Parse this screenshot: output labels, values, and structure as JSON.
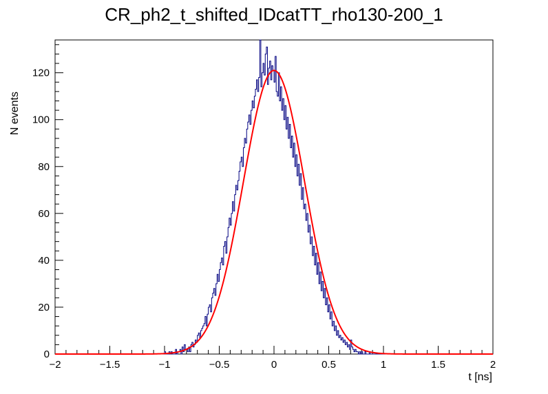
{
  "chart_data": {
    "type": "line",
    "title": "CR_ph2_t_shifted_IDcatTT_rho130-200_1",
    "xlabel": "t [ns]",
    "ylabel": "N events",
    "xlim": [
      -2,
      2
    ],
    "ylim": [
      0,
      134
    ],
    "x_ticks": [
      -2,
      -1.5,
      -1,
      -0.5,
      0,
      0.5,
      1,
      1.5,
      2
    ],
    "x_tick_labels": [
      "−2",
      "−1.5",
      "−1",
      "−0.5",
      "0",
      "0.5",
      "1",
      "1.5",
      "2"
    ],
    "y_ticks": [
      0,
      20,
      40,
      60,
      80,
      100,
      120
    ],
    "y_tick_labels": [
      "0",
      "20",
      "40",
      "60",
      "80",
      "100",
      "120"
    ],
    "grid": false,
    "colors": {
      "histogram": "#000080",
      "fit": "#ff0000",
      "frame": "#000000"
    },
    "series": [
      {
        "kind": "histogram",
        "bin_width": 0.01,
        "x_start": -1.0,
        "x_end": 0.95,
        "counts": [
          1,
          0,
          0,
          0,
          1,
          0,
          1,
          0,
          0,
          0,
          2,
          0,
          1,
          1,
          2,
          0,
          3,
          1,
          4,
          2,
          2,
          1,
          3,
          1,
          4,
          5,
          3,
          4,
          6,
          5,
          8,
          9,
          7,
          10,
          11,
          12,
          13,
          16,
          12,
          17,
          20,
          21,
          18,
          24,
          26,
          28,
          25,
          30,
          34,
          31,
          36,
          39,
          41,
          38,
          46,
          48,
          43,
          50,
          54,
          58,
          55,
          60,
          65,
          61,
          68,
          72,
          70,
          74,
          78,
          82,
          84,
          80,
          88,
          92,
          90,
          96,
          99,
          102,
          98,
          104,
          108,
          105,
          110,
          113,
          117,
          112,
          118,
          134,
          114,
          120,
          124,
          119,
          128,
          131,
          115,
          122,
          125,
          117,
          123,
          121,
          116,
          127,
          112,
          110,
          120,
          108,
          114,
          104,
          109,
          100,
          106,
          96,
          101,
          92,
          98,
          88,
          93,
          84,
          90,
          80,
          85,
          76,
          81,
          72,
          77,
          66,
          71,
          62,
          64,
          57,
          60,
          52,
          55,
          47,
          50,
          42,
          46,
          38,
          43,
          34,
          39,
          30,
          35,
          27,
          31,
          24,
          28,
          21,
          24,
          18,
          21,
          15,
          18,
          12,
          14,
          10,
          12,
          8,
          10,
          7,
          8,
          6,
          7,
          5,
          6,
          4,
          5,
          3,
          4,
          2,
          6,
          3,
          2,
          1,
          2,
          1,
          1,
          0,
          1,
          0,
          1,
          0,
          0,
          1,
          0,
          0,
          0,
          1,
          0,
          0,
          0,
          0,
          0,
          0,
          0,
          0
        ]
      },
      {
        "kind": "gaussian_fit",
        "amplitude": 121,
        "mean": 0.0,
        "sigma": 0.28
      }
    ]
  }
}
